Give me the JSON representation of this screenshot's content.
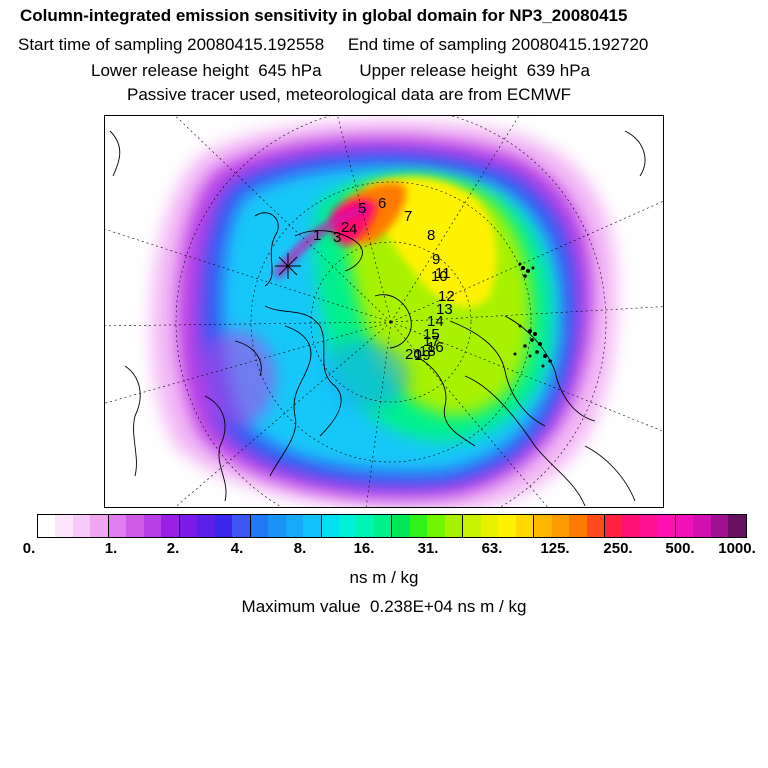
{
  "header": {
    "title": "Column-integrated emission sensitivity in global domain for NP3_20080415",
    "line2": "Start time of sampling 20080415.192558     End time of sampling 20080415.192720",
    "line3": "Lower release height  645 hPa        Upper release height  639 hPa",
    "line4": "Passive tracer used, meteorological data are from ECMWF"
  },
  "map": {
    "projection": "north polar stereographic",
    "trajectory_labels": [
      "1",
      "2",
      "3",
      "4",
      "5",
      "6",
      "7",
      "8",
      "9",
      "10",
      "11",
      "12",
      "13",
      "14",
      "15",
      "16",
      "17",
      "18",
      "19",
      "20"
    ]
  },
  "colorbar": {
    "colors": [
      "#ffffff",
      "#fde6fb",
      "#f7c9f7",
      "#f0a6f0",
      "#e07ef0",
      "#cf5ae8",
      "#b93fe6",
      "#9b20e6",
      "#7b1be8",
      "#5a20e8",
      "#3a27ee",
      "#3b56f3",
      "#1f78f5",
      "#1a93f7",
      "#17a9f8",
      "#12c2f9",
      "#00e0f0",
      "#00f0d8",
      "#00f5b4",
      "#00f08c",
      "#00e855",
      "#2ff21a",
      "#74f500",
      "#a8f200",
      "#c9f200",
      "#e8f200",
      "#fff200",
      "#ffd800",
      "#ffb800",
      "#ff9a00",
      "#ff7a00",
      "#ff4a1a",
      "#ff2040",
      "#ff1070",
      "#ff1090",
      "#ff10b0",
      "#f010b8",
      "#d010b0",
      "#a01090",
      "#6a1060"
    ],
    "tick_labels": [
      "0.",
      "1.",
      "2.",
      "4.",
      "8.",
      "16.",
      "31.",
      "63.",
      "125.",
      "250.",
      "500.",
      "1000."
    ],
    "unit": "ns m / kg"
  },
  "footer": {
    "max_value": "Maximum value  0.238E+04 ns m / kg"
  }
}
